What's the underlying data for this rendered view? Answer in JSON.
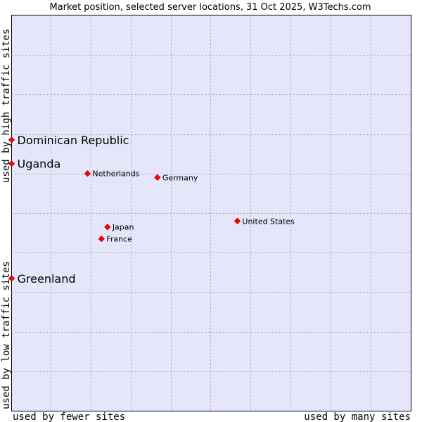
{
  "chart_data": {
    "type": "scatter",
    "title": "Market position, selected server locations, 31 Oct 2025, W3Techs.com",
    "xlabel_left": "used by fewer sites",
    "xlabel_right": "used by many sites",
    "ylabel_low": "used by low traffic sites",
    "ylabel_high": "used by high traffic sites",
    "xlim": [
      0,
      100
    ],
    "ylim": [
      0,
      100
    ],
    "grid": true,
    "background_color": "#e6e6fa",
    "grid_color": "#a0a0b0",
    "marker_color": "#ff0000",
    "points": [
      {
        "label": "Dominican Republic",
        "x": 0,
        "y": 68.5,
        "highlight": true
      },
      {
        "label": "Uganda",
        "x": 0,
        "y": 62.5,
        "highlight": true
      },
      {
        "label": "Greenland",
        "x": 0,
        "y": 33.5,
        "highlight": true
      },
      {
        "label": "Netherlands",
        "x": 19.0,
        "y": 60.0,
        "highlight": false
      },
      {
        "label": "Germany",
        "x": 36.5,
        "y": 59.0,
        "highlight": false
      },
      {
        "label": "United States",
        "x": 56.5,
        "y": 48.0,
        "highlight": false
      },
      {
        "label": "Japan",
        "x": 24.0,
        "y": 46.5,
        "highlight": false
      },
      {
        "label": "France",
        "x": 22.5,
        "y": 43.5,
        "highlight": false
      }
    ]
  }
}
